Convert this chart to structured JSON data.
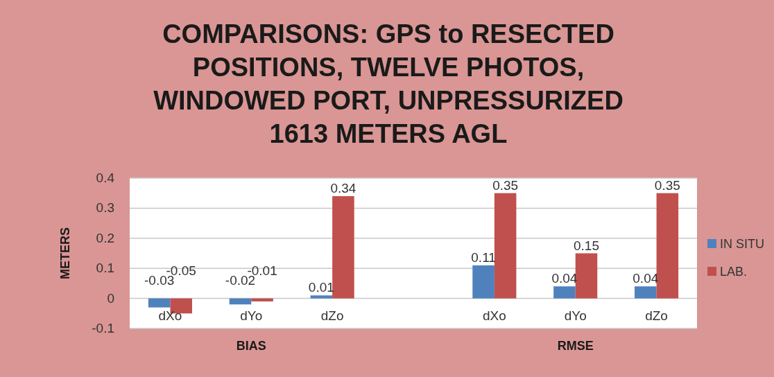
{
  "chart_data": {
    "type": "bar",
    "title": "COMPARISONS: GPS to RESECTED\nPOSITIONS, TWELVE PHOTOS,\nWINDOWED PORT, UNPRESSURIZED\n1613 METERS AGL",
    "ylabel": "METERS",
    "categories": [
      "dXo",
      "dYo",
      "dZo",
      null,
      "dXo",
      "dYo",
      "dZo"
    ],
    "series": [
      {
        "name": "IN SITU",
        "color": "#4f81bd",
        "values": [
          -0.03,
          -0.02,
          0.01,
          null,
          0.11,
          0.04,
          0.04
        ]
      },
      {
        "name": "LAB.",
        "color": "#c0504d",
        "values": [
          -0.05,
          -0.01,
          0.34,
          null,
          0.35,
          0.15,
          0.35
        ]
      }
    ],
    "ylim": [
      -0.1,
      0.4
    ],
    "yticks": [
      -0.1,
      0,
      0.1,
      0.2,
      0.3,
      0.4
    ],
    "grid": "y",
    "data_labels": true,
    "legend": "right",
    "annotations": [
      "BIAS",
      "RMSE"
    ]
  }
}
